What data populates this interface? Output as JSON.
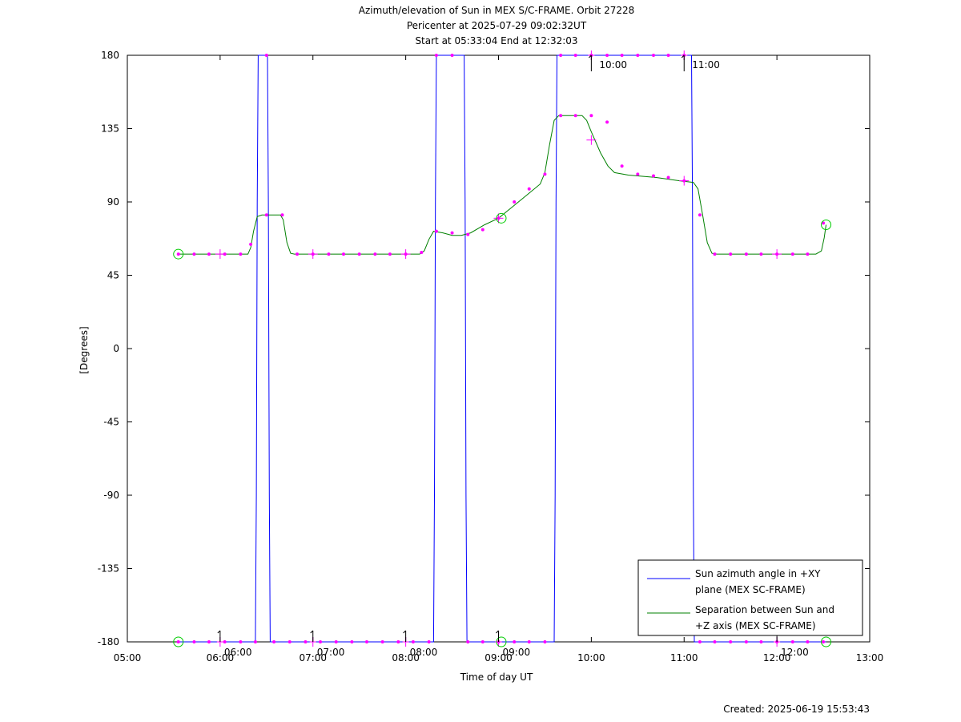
{
  "chart_data": {
    "type": "line",
    "title_lines": [
      "Azimuth/elevation of Sun in MEX S/C-FRAME.  Orbit 27228",
      "Pericenter at 2025-07-29 09:02:32UT",
      "Start at 05:33:04 End at 12:32:03"
    ],
    "xlabel": "Time of day UT",
    "ylabel": "[Degrees]",
    "footer": "Created: 2025-06-19 15:53:43",
    "xlim_hours": [
      5,
      13
    ],
    "ylim": [
      -180,
      180
    ],
    "x_ticks": [
      {
        "h": 5,
        "label": "05:00"
      },
      {
        "h": 6,
        "label": "06:00"
      },
      {
        "h": 7,
        "label": "07:00"
      },
      {
        "h": 8,
        "label": "08:00"
      },
      {
        "h": 9,
        "label": "09:00"
      },
      {
        "h": 10,
        "label": "10:00"
      },
      {
        "h": 11,
        "label": "11:00"
      },
      {
        "h": 12,
        "label": "12:00"
      },
      {
        "h": 13,
        "label": "13:00"
      }
    ],
    "y_ticks": [
      {
        "v": 180,
        "label": "180"
      },
      {
        "v": 135,
        "label": "135"
      },
      {
        "v": 90,
        "label": "90"
      },
      {
        "v": 45,
        "label": "45"
      },
      {
        "v": 0,
        "label": "0"
      },
      {
        "v": -45,
        "label": "-45"
      },
      {
        "v": -90,
        "label": "-90"
      },
      {
        "v": -135,
        "label": "-135"
      },
      {
        "v": -180,
        "label": "-180"
      }
    ],
    "hour_markers": [
      {
        "h": 6,
        "v": -180,
        "label": "06:00"
      },
      {
        "h": 7,
        "v": -180,
        "label": "07:00"
      },
      {
        "h": 8,
        "v": -180,
        "label": "08:00"
      },
      {
        "h": 9,
        "v": -180,
        "label": "09:00"
      },
      {
        "h": 10,
        "v": 180,
        "label": "10:00"
      },
      {
        "h": 11,
        "v": 180,
        "label": "11:00"
      },
      {
        "h": 12,
        "v": -180,
        "label": "12:00"
      }
    ],
    "series": [
      {
        "name": "Sun azimuth angle in +XY plane (MEX SC-FRAME)",
        "legend_lines": [
          "Sun azimuth angle in +XY",
          "plane (MEX SC-FRAME)"
        ],
        "color": "#0000ff",
        "points": [
          [
            5.55,
            -180
          ],
          [
            6.38,
            -180
          ],
          [
            6.39,
            -90
          ],
          [
            6.4,
            90
          ],
          [
            6.41,
            180
          ],
          [
            6.51,
            180
          ],
          [
            6.52,
            90
          ],
          [
            6.53,
            -90
          ],
          [
            6.54,
            -180
          ],
          [
            8.3,
            -180
          ],
          [
            8.31,
            -90
          ],
          [
            8.32,
            90
          ],
          [
            8.33,
            180
          ],
          [
            8.63,
            180
          ],
          [
            8.64,
            90
          ],
          [
            8.65,
            -90
          ],
          [
            8.66,
            -180
          ],
          [
            9.6,
            -180
          ],
          [
            9.61,
            -90
          ],
          [
            9.62,
            90
          ],
          [
            9.63,
            180
          ],
          [
            11.08,
            180
          ],
          [
            11.09,
            90
          ],
          [
            11.1,
            -90
          ],
          [
            11.11,
            -180
          ],
          [
            12.53,
            -180
          ]
        ]
      },
      {
        "name": "Separation between Sun and +Z axis (MEX SC-FRAME)",
        "legend_lines": [
          "Separation between Sun and",
          "+Z axis (MEX SC-FRAME)"
        ],
        "color": "#008000",
        "points": [
          [
            5.55,
            58
          ],
          [
            6.3,
            58
          ],
          [
            6.33,
            62
          ],
          [
            6.36,
            72
          ],
          [
            6.4,
            81
          ],
          [
            6.45,
            82
          ],
          [
            6.65,
            82
          ],
          [
            6.68,
            79
          ],
          [
            6.72,
            65
          ],
          [
            6.76,
            58.5
          ],
          [
            6.8,
            58
          ],
          [
            8.15,
            58
          ],
          [
            8.2,
            60
          ],
          [
            8.25,
            67
          ],
          [
            8.3,
            72
          ],
          [
            8.4,
            71
          ],
          [
            8.5,
            69.5
          ],
          [
            8.6,
            69.5
          ],
          [
            8.7,
            71
          ],
          [
            8.85,
            76
          ],
          [
            9.0,
            80
          ],
          [
            9.15,
            87
          ],
          [
            9.3,
            94
          ],
          [
            9.45,
            101
          ],
          [
            9.5,
            108
          ],
          [
            9.55,
            125
          ],
          [
            9.6,
            140
          ],
          [
            9.65,
            143
          ],
          [
            9.9,
            143
          ],
          [
            9.95,
            140
          ],
          [
            10.0,
            133
          ],
          [
            10.1,
            120
          ],
          [
            10.18,
            112
          ],
          [
            10.25,
            108
          ],
          [
            10.4,
            106.5
          ],
          [
            10.7,
            105
          ],
          [
            10.95,
            103
          ],
          [
            11.1,
            102
          ],
          [
            11.15,
            98
          ],
          [
            11.2,
            82
          ],
          [
            11.25,
            65
          ],
          [
            11.3,
            58.5
          ],
          [
            11.35,
            58
          ],
          [
            12.42,
            58
          ],
          [
            12.48,
            60
          ],
          [
            12.51,
            68
          ],
          [
            12.53,
            76
          ]
        ]
      }
    ],
    "azimuth_dots": [
      [
        5.55,
        -180
      ],
      [
        5.72,
        -180
      ],
      [
        5.88,
        -180
      ],
      [
        6.05,
        -180
      ],
      [
        6.22,
        -180
      ],
      [
        6.38,
        -180
      ],
      [
        6.5,
        180
      ],
      [
        6.58,
        -180
      ],
      [
        6.75,
        -180
      ],
      [
        6.92,
        -180
      ],
      [
        7.08,
        -180
      ],
      [
        7.25,
        -180
      ],
      [
        7.42,
        -180
      ],
      [
        7.58,
        -180
      ],
      [
        7.75,
        -180
      ],
      [
        7.92,
        -180
      ],
      [
        8.08,
        -180
      ],
      [
        8.25,
        -180
      ],
      [
        8.33,
        180
      ],
      [
        8.5,
        180
      ],
      [
        8.67,
        -180
      ],
      [
        8.83,
        -180
      ],
      [
        9.0,
        -180
      ],
      [
        9.17,
        -180
      ],
      [
        9.33,
        -180
      ],
      [
        9.5,
        -180
      ],
      [
        9.67,
        180
      ],
      [
        9.83,
        180
      ],
      [
        10.0,
        180
      ],
      [
        10.17,
        180
      ],
      [
        10.33,
        180
      ],
      [
        10.5,
        180
      ],
      [
        10.67,
        180
      ],
      [
        10.83,
        180
      ],
      [
        11.0,
        180
      ],
      [
        11.17,
        -180
      ],
      [
        11.33,
        -180
      ],
      [
        11.5,
        -180
      ],
      [
        11.67,
        -180
      ],
      [
        11.83,
        -180
      ],
      [
        12.0,
        -180
      ],
      [
        12.17,
        -180
      ],
      [
        12.33,
        -180
      ],
      [
        12.5,
        -180
      ]
    ],
    "separation_dots": [
      [
        5.55,
        58
      ],
      [
        5.72,
        58
      ],
      [
        5.88,
        58
      ],
      [
        6.05,
        58
      ],
      [
        6.22,
        58
      ],
      [
        6.33,
        64
      ],
      [
        6.5,
        82
      ],
      [
        6.67,
        82
      ],
      [
        6.83,
        58
      ],
      [
        7.0,
        58
      ],
      [
        7.17,
        58
      ],
      [
        7.33,
        58
      ],
      [
        7.5,
        58
      ],
      [
        7.67,
        58
      ],
      [
        7.83,
        58
      ],
      [
        8.0,
        58
      ],
      [
        8.17,
        59
      ],
      [
        8.33,
        72
      ],
      [
        8.5,
        71
      ],
      [
        8.67,
        70
      ],
      [
        8.83,
        73
      ],
      [
        9.0,
        80
      ],
      [
        9.17,
        90
      ],
      [
        9.33,
        98
      ],
      [
        9.5,
        107
      ],
      [
        9.67,
        143
      ],
      [
        9.83,
        143
      ],
      [
        10.0,
        143
      ],
      [
        10.17,
        139
      ],
      [
        10.33,
        112
      ],
      [
        10.5,
        107
      ],
      [
        10.67,
        106
      ],
      [
        10.83,
        105
      ],
      [
        11.0,
        103
      ],
      [
        11.17,
        82
      ],
      [
        11.33,
        58
      ],
      [
        11.5,
        58
      ],
      [
        11.67,
        58
      ],
      [
        11.83,
        58
      ],
      [
        12.0,
        58
      ],
      [
        12.17,
        58
      ],
      [
        12.33,
        58
      ],
      [
        12.5,
        77
      ]
    ],
    "separation_crosses": [
      [
        6.0,
        58
      ],
      [
        7.0,
        58
      ],
      [
        8.0,
        58
      ],
      [
        9.0,
        80
      ],
      [
        10.0,
        128
      ],
      [
        11.0,
        103
      ],
      [
        12.0,
        58
      ]
    ],
    "azimuth_crosses": [
      [
        6.0,
        -180
      ],
      [
        7.0,
        -180
      ],
      [
        8.0,
        -180
      ],
      [
        9.0,
        -180
      ],
      [
        10.0,
        180
      ],
      [
        11.0,
        180
      ],
      [
        12.0,
        -180
      ]
    ],
    "circles": [
      [
        5.55,
        58
      ],
      [
        5.55,
        -180
      ],
      [
        9.03,
        80
      ],
      [
        9.03,
        -180
      ],
      [
        12.53,
        76
      ],
      [
        12.53,
        -180
      ]
    ]
  }
}
